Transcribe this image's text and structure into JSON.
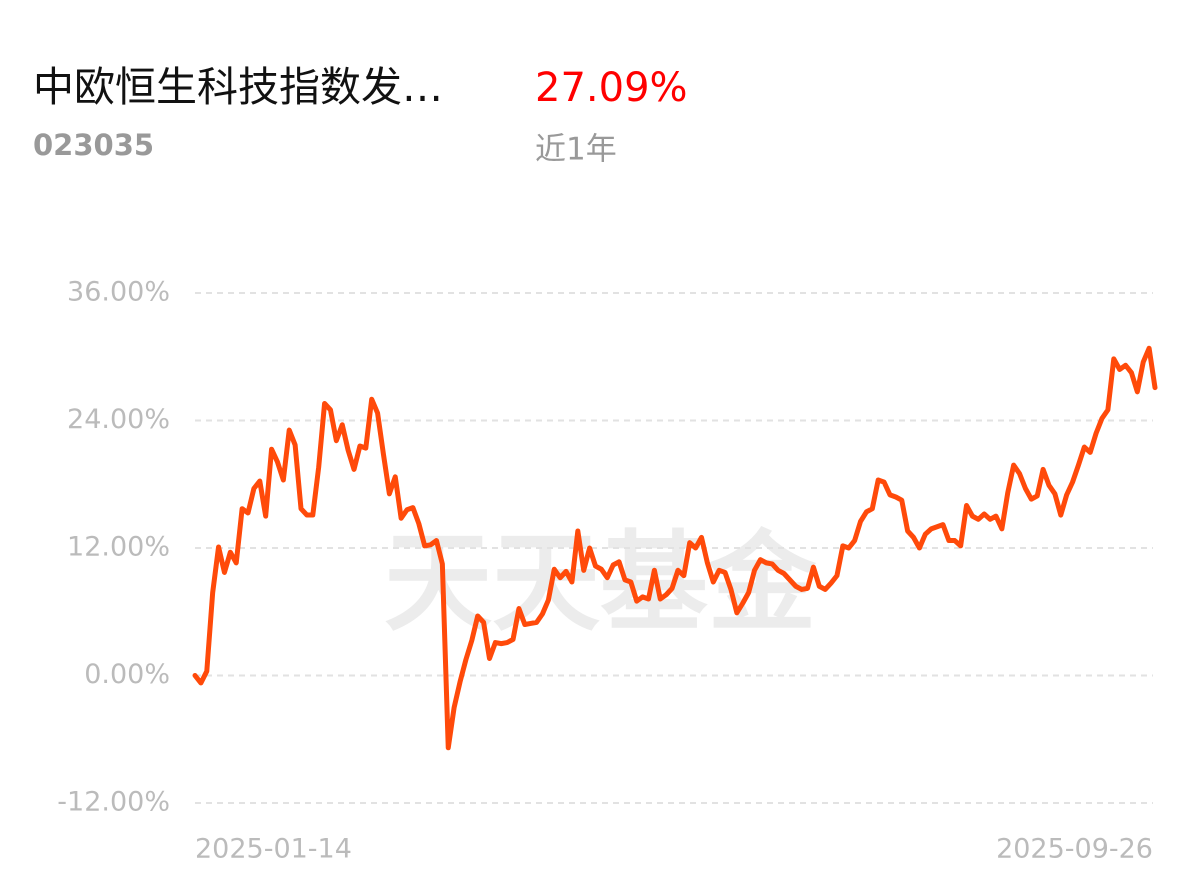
{
  "chart_data": {
    "type": "line",
    "title": "中欧恒生科技指数发…",
    "return": "27.09%",
    "code": "023035",
    "period": "近1年",
    "watermark": "天天基金",
    "ylim": [
      -12,
      36
    ],
    "yticks": [
      {
        "value": 36,
        "label": "36.00%"
      },
      {
        "value": 24,
        "label": "24.00%"
      },
      {
        "value": 12,
        "label": "12.00%"
      },
      {
        "value": 0,
        "label": "0.00%"
      },
      {
        "value": -12,
        "label": "-12.00%"
      }
    ],
    "grid": true,
    "categories": [
      "2025-01-14",
      null,
      null,
      null,
      null,
      null,
      null,
      null,
      null,
      null,
      null,
      null,
      null,
      null,
      null,
      null,
      null,
      null,
      null,
      null,
      null,
      null,
      null,
      null,
      null,
      null,
      null,
      null,
      null,
      null,
      null,
      null,
      null,
      null,
      null,
      null,
      null,
      null,
      null,
      null,
      null,
      null,
      null,
      null,
      null,
      null,
      null,
      null,
      null,
      null,
      null,
      null,
      null,
      null,
      null,
      null,
      null,
      null,
      null,
      null,
      null,
      null,
      null,
      null,
      null,
      null,
      null,
      null,
      null,
      null,
      null,
      null,
      null,
      null,
      null,
      null,
      null,
      null,
      null,
      null,
      null,
      null,
      null,
      null,
      null,
      null,
      null,
      null,
      null,
      null,
      null,
      null,
      null,
      null,
      null,
      null,
      null,
      null,
      null,
      null,
      null,
      null,
      null,
      null,
      null,
      null,
      null,
      null,
      null,
      null,
      null,
      null,
      null,
      null,
      null,
      null,
      null,
      null,
      null,
      null,
      null,
      null,
      null,
      null,
      null,
      null,
      null,
      null,
      null,
      null,
      null,
      null,
      null,
      null,
      null,
      null,
      null,
      null,
      null,
      null,
      null,
      null,
      null,
      null,
      null,
      null,
      null,
      null,
      null,
      null,
      null,
      null,
      null,
      null,
      null,
      null,
      null,
      null,
      null,
      null,
      null,
      null,
      null,
      "2025-09-26"
    ],
    "series": [
      {
        "name": "中欧恒生科技指数发…",
        "color": "#ff4a0a",
        "values": [
          0,
          -0.7,
          0.4,
          7.8,
          12.1,
          9.7,
          11.6,
          10.6,
          15.7,
          15.3,
          17.6,
          18.3,
          15.0,
          21.3,
          20.1,
          18.4,
          23.1,
          21.7,
          15.7,
          15.1,
          15.1,
          19.6,
          25.6,
          25.0,
          22.1,
          23.6,
          21.2,
          19.4,
          21.6,
          21.4,
          26.0,
          24.7,
          20.8,
          17.1,
          18.7,
          14.8,
          15.6,
          15.8,
          14.3,
          12.2,
          12.3,
          12.7,
          10.5,
          -6.8,
          -3.0,
          -0.6,
          1.5,
          3.3,
          5.6,
          5.0,
          1.6,
          3.1,
          3.0,
          3.1,
          3.4,
          6.3,
          4.8,
          4.9,
          5.0,
          5.8,
          7.1,
          10.0,
          9.2,
          9.8,
          8.8,
          13.6,
          9.9,
          12.0,
          10.3,
          10.0,
          9.2,
          10.4,
          10.7,
          9.0,
          8.8,
          7.0,
          7.4,
          7.2,
          9.9,
          7.2,
          7.6,
          8.2,
          9.9,
          9.4,
          12.5,
          12.0,
          13.0,
          10.6,
          8.8,
          9.9,
          9.7,
          8.1,
          5.9,
          6.8,
          7.8,
          9.9,
          10.9,
          10.6,
          10.5,
          9.9,
          9.6,
          9.0,
          8.4,
          8.1,
          8.2,
          10.2,
          8.4,
          8.1,
          8.7,
          9.4,
          12.2,
          12.0,
          12.7,
          14.5,
          15.4,
          15.7,
          18.4,
          18.2,
          17.0,
          16.8,
          16.5,
          13.6,
          13.0,
          12.0,
          13.3,
          13.8,
          14.0,
          14.2,
          12.7,
          12.7,
          12.2,
          16.0,
          15.0,
          14.7,
          15.2,
          14.7,
          15.0,
          13.8,
          17.2,
          19.8,
          19.0,
          17.6,
          16.6,
          16.9,
          19.4,
          17.9,
          17.1,
          15.1,
          17.0,
          18.2,
          19.8,
          21.5,
          21.0,
          22.8,
          24.2,
          25.0,
          29.8,
          28.8,
          29.2,
          28.5,
          26.7,
          29.5,
          30.8,
          27.09
        ]
      }
    ]
  }
}
